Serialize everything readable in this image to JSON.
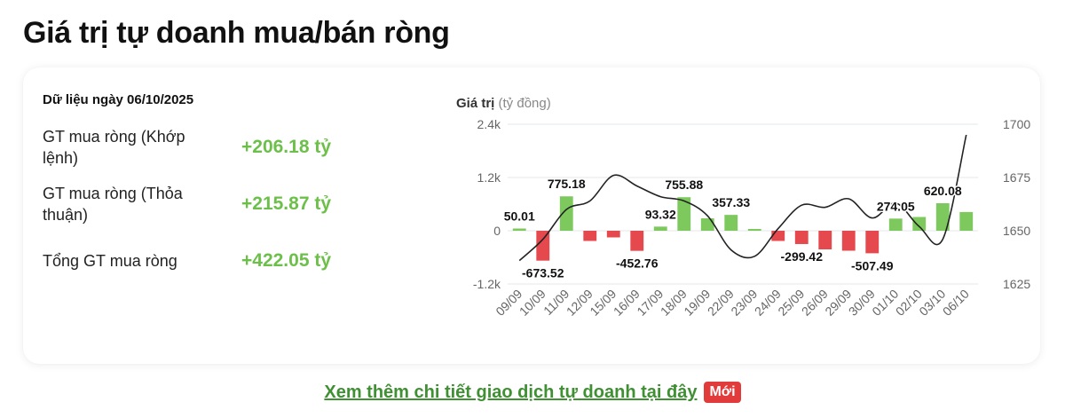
{
  "page": {
    "title": "Giá trị tự doanh mua/bán ròng"
  },
  "summary": {
    "date_label": "Dữ liệu ngày 06/10/2025",
    "rows": [
      {
        "label": "GT mua ròng (Khớp lệnh)",
        "value": "+206.18 tỷ"
      },
      {
        "label": "GT mua ròng (Thỏa thuận)",
        "value": "+215.87 tỷ"
      },
      {
        "label": "Tổng GT mua ròng",
        "value": "+422.05 tỷ"
      }
    ]
  },
  "chart_data": {
    "type": "bar",
    "ylabel": "Giá trị",
    "ylabel_unit": "(tỷ đồng)",
    "categories": [
      "09/09",
      "10/09",
      "11/09",
      "12/09",
      "15/09",
      "16/09",
      "17/09",
      "18/09",
      "19/09",
      "22/09",
      "23/09",
      "24/09",
      "25/09",
      "26/09",
      "29/09",
      "30/09",
      "01/10",
      "02/10",
      "03/10",
      "06/10"
    ],
    "values": [
      50.01,
      -673.52,
      775.18,
      -230,
      -150,
      -452.76,
      93.32,
      755.88,
      280,
      357.33,
      40,
      -230,
      -299.42,
      -420,
      -450,
      -507.49,
      274.05,
      310,
      620.08,
      422.05
    ],
    "value_labels": [
      {
        "index": 0,
        "text": "50.01",
        "pos": "above"
      },
      {
        "index": 1,
        "text": "-673.52",
        "pos": "below"
      },
      {
        "index": 2,
        "text": "775.18",
        "pos": "above"
      },
      {
        "index": 5,
        "text": "-452.76",
        "pos": "below"
      },
      {
        "index": 6,
        "text": "93.32",
        "pos": "above"
      },
      {
        "index": 7,
        "text": "755.88",
        "pos": "above"
      },
      {
        "index": 9,
        "text": "357.33",
        "pos": "above"
      },
      {
        "index": 12,
        "text": "-299.42",
        "pos": "below"
      },
      {
        "index": 15,
        "text": "-507.49",
        "pos": "below"
      },
      {
        "index": 16,
        "text": "274.05",
        "pos": "above"
      },
      {
        "index": 18,
        "text": "620.08",
        "pos": "above"
      }
    ],
    "ylim": [
      -1200,
      2400
    ],
    "yticks": [
      -1200,
      0,
      1200,
      2400
    ],
    "ytick_labels": [
      "-1.2k",
      "0",
      "1.2k",
      "2.4k"
    ],
    "y2lim": [
      1625,
      1700
    ],
    "y2ticks": [
      1625,
      1650,
      1675,
      1700
    ],
    "y2tick_labels": [
      "1625",
      "1650",
      "1675",
      "1700"
    ],
    "line_values": [
      1636,
      1646,
      1660,
      1664,
      1676,
      1671,
      1666,
      1664,
      1657,
      1641,
      1638,
      1651,
      1662,
      1661,
      1665,
      1656,
      1663,
      1652,
      1646,
      1695
    ],
    "colors": {
      "positive": "#7dc95e",
      "negative": "#e5484d",
      "line": "#222222",
      "grid": "#e4e7ea",
      "axis_text": "#666666"
    }
  },
  "cta": {
    "link_text": "Xem thêm chi tiết giao dịch tự doanh tại đây",
    "badge": "Mới"
  }
}
